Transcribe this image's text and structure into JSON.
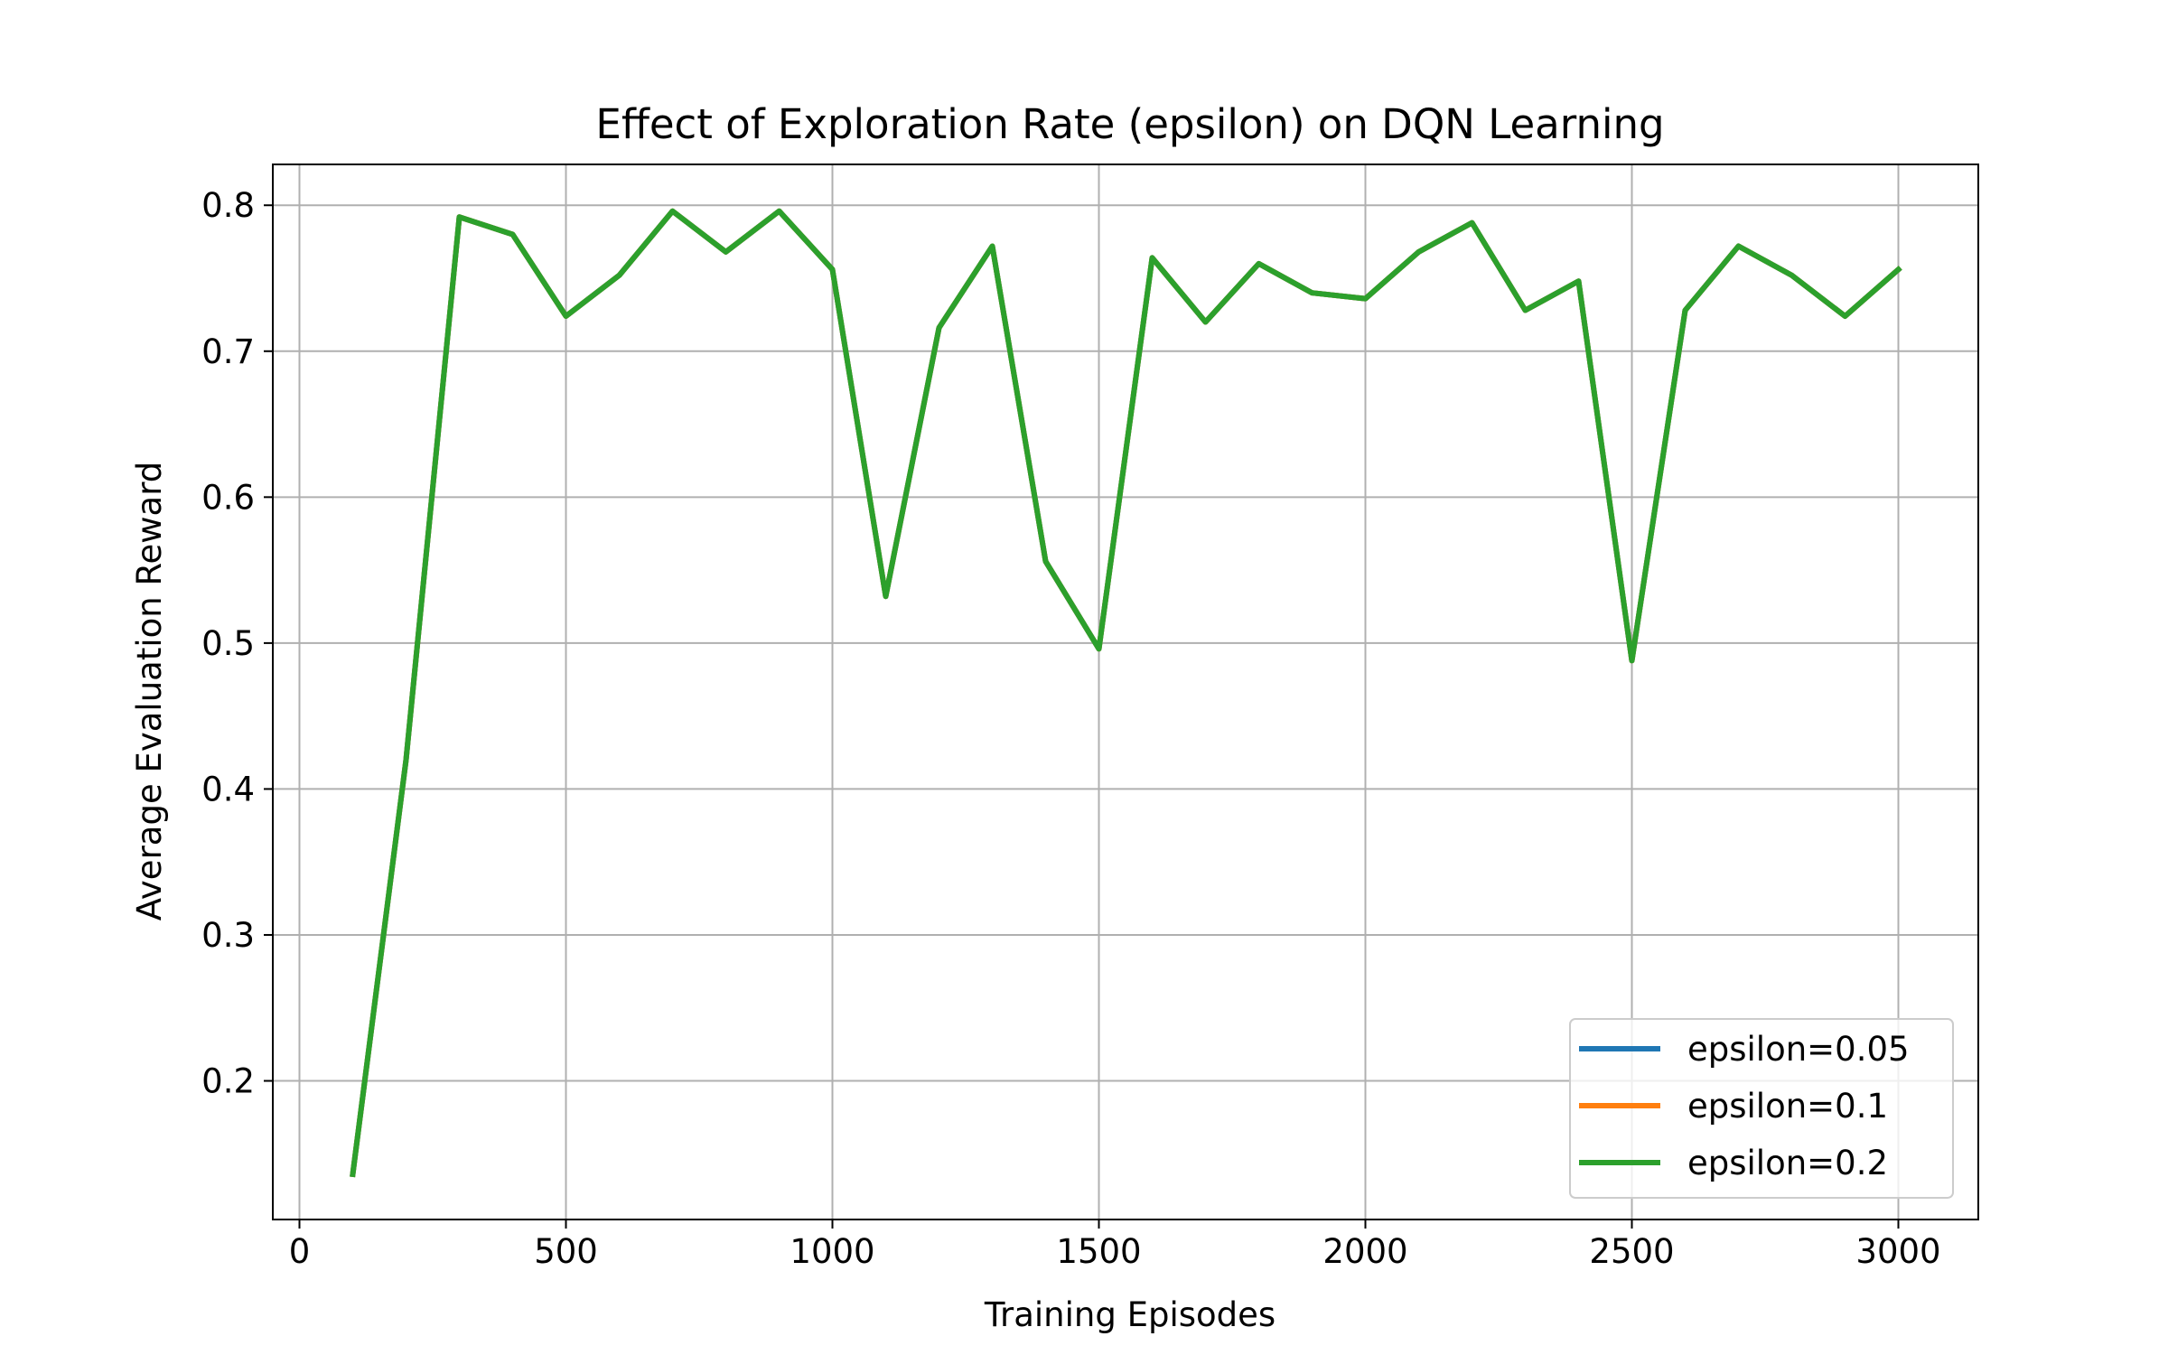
{
  "chart_data": {
    "type": "line",
    "title": "Effect of Exploration Rate (epsilon) on DQN Learning",
    "xlabel": "Training Episodes",
    "ylabel": "Average Evaluation Reward",
    "xlim": [
      -50,
      3150
    ],
    "ylim": [
      0.105,
      0.828
    ],
    "xticks": [
      0,
      500,
      1000,
      1500,
      2000,
      2500,
      3000
    ],
    "xtick_labels": [
      "0",
      "500",
      "1000",
      "1500",
      "2000",
      "2500",
      "3000"
    ],
    "yticks": [
      0.2,
      0.3,
      0.4,
      0.5,
      0.6,
      0.7,
      0.8
    ],
    "ytick_labels": [
      "0.2",
      "0.3",
      "0.4",
      "0.5",
      "0.6",
      "0.7",
      "0.8"
    ],
    "grid": true,
    "legend_position": "lower-right",
    "x": [
      100,
      200,
      300,
      400,
      500,
      600,
      700,
      800,
      900,
      1000,
      1100,
      1200,
      1300,
      1400,
      1500,
      1600,
      1700,
      1800,
      1900,
      2000,
      2100,
      2200,
      2300,
      2400,
      2500,
      2600,
      2700,
      2800,
      2900,
      3000
    ],
    "series": [
      {
        "name": "epsilon=0.05",
        "color": "#1f77b4",
        "values": [
          0.136,
          0.42,
          0.792,
          0.78,
          0.724,
          0.752,
          0.796,
          0.768,
          0.796,
          0.756,
          0.532,
          0.716,
          0.772,
          0.556,
          0.496,
          0.764,
          0.72,
          0.76,
          0.74,
          0.736,
          0.768,
          0.788,
          0.728,
          0.748,
          0.488,
          0.728,
          0.772,
          0.752,
          0.724,
          0.756
        ]
      },
      {
        "name": "epsilon=0.1",
        "color": "#ff7f0e",
        "values": [
          0.136,
          0.42,
          0.792,
          0.78,
          0.724,
          0.752,
          0.796,
          0.768,
          0.796,
          0.756,
          0.532,
          0.716,
          0.772,
          0.556,
          0.496,
          0.764,
          0.72,
          0.76,
          0.74,
          0.736,
          0.768,
          0.788,
          0.728,
          0.748,
          0.488,
          0.728,
          0.772,
          0.752,
          0.724,
          0.756
        ]
      },
      {
        "name": "epsilon=0.2",
        "color": "#2ca02c",
        "values": [
          0.136,
          0.42,
          0.792,
          0.78,
          0.724,
          0.752,
          0.796,
          0.768,
          0.796,
          0.756,
          0.532,
          0.716,
          0.772,
          0.556,
          0.496,
          0.764,
          0.72,
          0.76,
          0.74,
          0.736,
          0.768,
          0.788,
          0.728,
          0.748,
          0.488,
          0.728,
          0.772,
          0.752,
          0.724,
          0.756
        ]
      }
    ]
  }
}
